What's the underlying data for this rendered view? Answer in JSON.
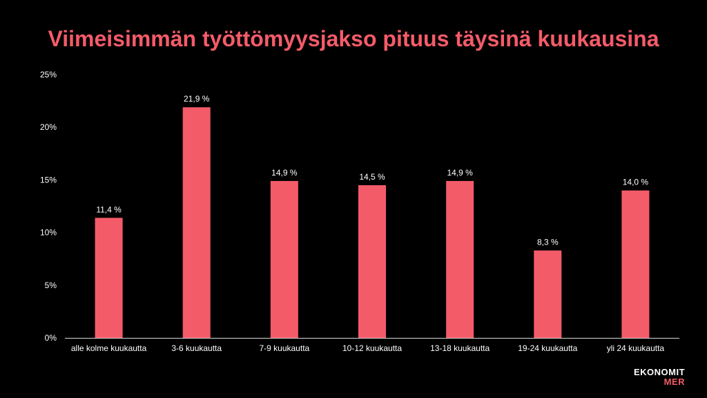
{
  "colors": {
    "background": "#000000",
    "accent": "#f45b69",
    "text": "#ffffff"
  },
  "logo": {
    "line1": "EKONOMIT",
    "line2": "MER"
  },
  "chart_data": {
    "type": "bar",
    "title": "Viimeisimmän työttömyysjakso pituus täysinä kuukausina",
    "categories": [
      "alle kolme kuukautta",
      "3-6 kuukautta",
      "7-9 kuukautta",
      "10-12 kuukautta",
      "13-18 kuukautta",
      "19-24 kuukautta",
      "yli 24 kuukautta"
    ],
    "values": [
      11.4,
      21.9,
      14.9,
      14.5,
      14.9,
      8.3,
      14.0
    ],
    "data_labels": [
      "11,4 %",
      "21,9 %",
      "14,9 %",
      "14,5 %",
      "14,9 %",
      "8,3 %",
      "14,0 %"
    ],
    "yticks": [
      0,
      5,
      10,
      15,
      20,
      25
    ],
    "ytick_labels": [
      "0%",
      "5%",
      "10%",
      "15%",
      "20%",
      "25%"
    ],
    "ylim": [
      0,
      25
    ],
    "grid": false,
    "legend": "none"
  }
}
